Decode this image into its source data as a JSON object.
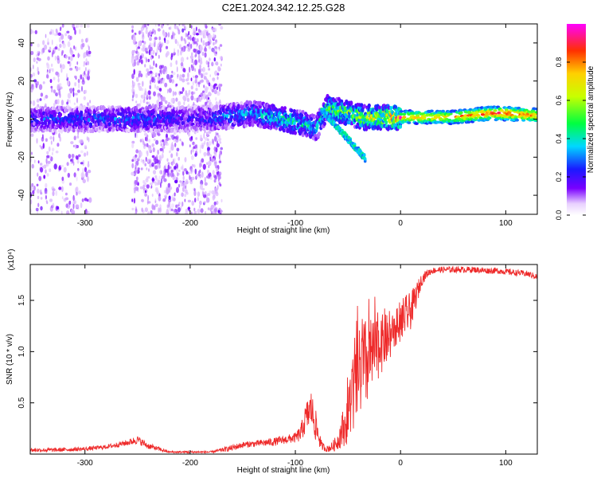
{
  "title": "C2E1.2024.342.12.25.G28",
  "chart_data": [
    {
      "type": "heatmap",
      "xlabel": "Height of straight line (km)",
      "ylabel": "Frequency (Hz)",
      "xlim": [
        -352,
        130
      ],
      "ylim": [
        -50,
        50
      ],
      "x_ticks": [
        -300,
        -200,
        -100,
        0,
        100
      ],
      "x_tick_labels": [
        "-300",
        "-200",
        "-100",
        "0",
        "100"
      ],
      "y_ticks": [
        -40,
        -20,
        0,
        20,
        40
      ],
      "y_tick_labels": [
        "-40",
        "-20",
        "0",
        "20",
        "40"
      ],
      "colorbar": {
        "label": "Normalized spectral amplitude",
        "range": [
          0,
          1
        ],
        "ticks": [
          0.0,
          0.2,
          0.4,
          0.6,
          0.8
        ],
        "tick_labels": [
          "0.0",
          "0.2",
          "0.4",
          "0.6",
          "0.8"
        ]
      },
      "ridge": {
        "description_points_height_km": [
          -352,
          -300,
          -250,
          -200,
          -170,
          -140,
          -110,
          -90,
          -80,
          -70,
          -50,
          -35,
          -20,
          0,
          20,
          50,
          85,
          95,
          130
        ],
        "frequency_hz": [
          0,
          0,
          0,
          0,
          1,
          3,
          0,
          -3,
          -5,
          6,
          3,
          1,
          1,
          1,
          1,
          1,
          3,
          3,
          2
        ],
        "amplitude": [
          0.25,
          0.25,
          0.28,
          0.2,
          0.3,
          0.35,
          0.45,
          0.4,
          0.35,
          0.5,
          0.55,
          0.6,
          0.65,
          0.8,
          0.8,
          0.8,
          0.95,
          0.95,
          0.85
        ]
      },
      "branch": {
        "height_km": [
          -75,
          -33
        ],
        "frequency_hz": [
          5,
          -21
        ]
      }
    },
    {
      "type": "line",
      "xlabel": "Height of straight line (km)",
      "ylabel": "SNR (10 * v/v)",
      "y_multiplier": "(x10⁴)",
      "xlim": [
        -352,
        130
      ],
      "ylim": [
        0,
        1.85
      ],
      "x_ticks": [
        -300,
        -200,
        -100,
        0,
        100
      ],
      "x_tick_labels": [
        "-300",
        "-200",
        "-100",
        "0",
        "100"
      ],
      "y_ticks": [
        0.5,
        1.0,
        1.5
      ],
      "y_tick_labels": [
        "0.5",
        "1.0",
        "1.5"
      ],
      "grid": false,
      "series": [
        {
          "color": "#ee2a2a",
          "x": [
            -352,
            -330,
            -300,
            -280,
            -260,
            -250,
            -240,
            -220,
            -200,
            -180,
            -170,
            -160,
            -150,
            -140,
            -120,
            -110,
            -100,
            -95,
            -90,
            -85,
            -80,
            -75,
            -70,
            -65,
            -60,
            -55,
            -50,
            -45,
            -40,
            -35,
            -30,
            -25,
            -20,
            -15,
            -10,
            -5,
            0,
            5,
            10,
            15,
            20,
            25,
            30,
            40,
            50,
            60,
            70,
            80,
            90,
            100,
            110,
            120,
            130
          ],
          "y": [
            0.04,
            0.04,
            0.05,
            0.07,
            0.11,
            0.14,
            0.08,
            0.02,
            0.02,
            0.02,
            0.04,
            0.06,
            0.09,
            0.1,
            0.12,
            0.14,
            0.16,
            0.2,
            0.35,
            0.45,
            0.25,
            0.08,
            0.05,
            0.07,
            0.12,
            0.25,
            0.45,
            0.7,
            0.9,
            1.0,
            1.05,
            1.1,
            1.15,
            1.2,
            1.2,
            1.25,
            1.3,
            1.35,
            1.4,
            1.55,
            1.7,
            1.76,
            1.79,
            1.8,
            1.8,
            1.8,
            1.8,
            1.79,
            1.79,
            1.78,
            1.77,
            1.76,
            1.73
          ],
          "noise": [
            0.02,
            0.02,
            0.02,
            0.02,
            0.03,
            0.04,
            0.03,
            0.01,
            0.01,
            0.01,
            0.02,
            0.03,
            0.03,
            0.03,
            0.04,
            0.04,
            0.05,
            0.08,
            0.15,
            0.18,
            0.15,
            0.04,
            0.03,
            0.05,
            0.08,
            0.18,
            0.35,
            0.5,
            0.6,
            0.65,
            0.55,
            0.45,
            0.4,
            0.35,
            0.3,
            0.25,
            0.2,
            0.2,
            0.18,
            0.12,
            0.06,
            0.04,
            0.03,
            0.03,
            0.03,
            0.03,
            0.03,
            0.03,
            0.03,
            0.03,
            0.03,
            0.03,
            0.03
          ]
        }
      ]
    }
  ]
}
